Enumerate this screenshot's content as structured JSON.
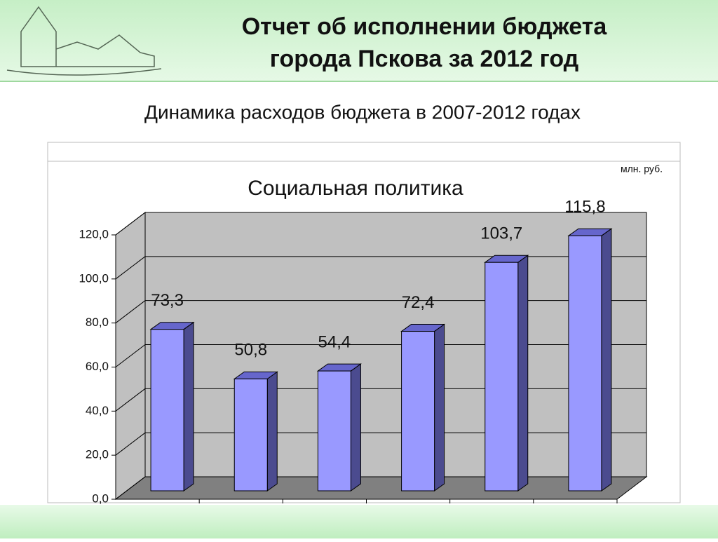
{
  "header": {
    "title": [
      "Отчет об исполнении бюджета",
      "города Пскова за 2012 год"
    ],
    "subtitle": "Динамика расходов бюджета в 2007-2012 годах"
  },
  "chart_data": {
    "type": "bar3d",
    "title": "Социальная политика",
    "ylabel": "млн. руб.",
    "values": [
      73.3,
      50.8,
      54.4,
      72.4,
      103.7,
      115.8
    ],
    "value_labels": [
      "73,3",
      "50,8",
      "54,4",
      "72,4",
      "103,7",
      "115,8"
    ],
    "color": "#9999ff",
    "ylim": [
      0,
      120
    ],
    "yticks": [
      {
        "value": 0,
        "label": "0,0"
      },
      {
        "value": 20,
        "label": "20,0"
      },
      {
        "value": 40,
        "label": "40,0"
      },
      {
        "value": 60,
        "label": "60,0"
      },
      {
        "value": 80,
        "label": "80,0"
      },
      {
        "value": 100,
        "label": "100,0"
      },
      {
        "value": 120,
        "label": "120,0"
      }
    ],
    "grid": true
  }
}
